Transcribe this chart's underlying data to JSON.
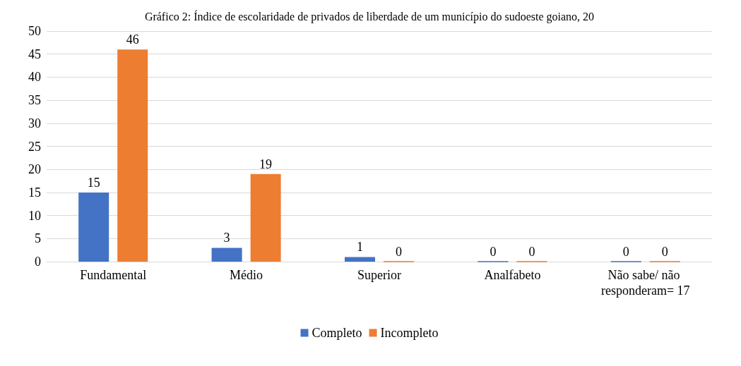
{
  "chart_data": {
    "type": "bar",
    "title": "Gráfico 2: Índice de escolaridade de privados de liberdade de um município do sudoeste goiano, 20",
    "categories": [
      "Fundamental",
      "Médio",
      "Superior",
      "Analfabeto",
      "Não sabe/ não responderam= 17"
    ],
    "series": [
      {
        "name": "Completo",
        "color": "#4472c4",
        "values": [
          15,
          3,
          1,
          0,
          0
        ]
      },
      {
        "name": "Incompleto",
        "color": "#ed7d31",
        "values": [
          46,
          19,
          0,
          0,
          0
        ]
      }
    ],
    "ylim": [
      0,
      50
    ],
    "yticks": [
      0,
      5,
      10,
      15,
      20,
      25,
      30,
      35,
      40,
      45,
      50
    ],
    "grid": "y",
    "legend": "bottom",
    "data_labels": true
  }
}
